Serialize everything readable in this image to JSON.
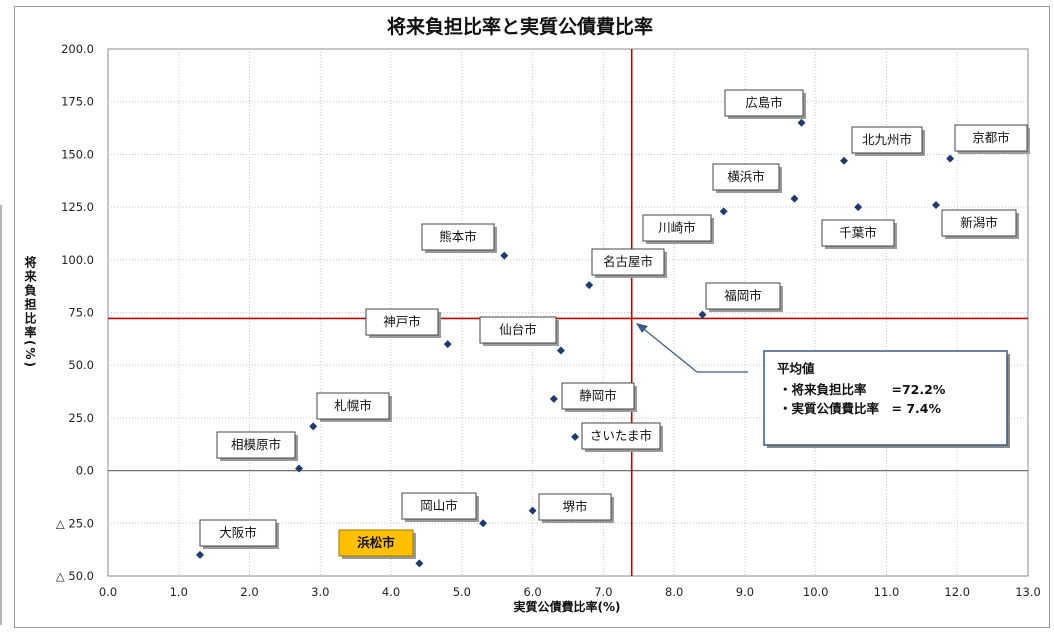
{
  "chart_data": {
    "type": "scatter",
    "title": "将来負担比率と実質公債費比率",
    "xlabel": "実質公債費比率(%)",
    "ylabel": "将来負担比率(%)",
    "xlim": [
      0,
      13
    ],
    "ylim": [
      -50,
      200
    ],
    "x_ticks": [
      "0.0",
      "1.0",
      "2.0",
      "3.0",
      "4.0",
      "5.0",
      "6.0",
      "7.0",
      "8.0",
      "9.0",
      "10.0",
      "11.0",
      "12.0",
      "13.0"
    ],
    "y_ticks": [
      {
        "value": 200,
        "label": "200.0"
      },
      {
        "value": 175,
        "label": "175.0"
      },
      {
        "value": 150,
        "label": "150.0"
      },
      {
        "value": 125,
        "label": "125.0"
      },
      {
        "value": 100,
        "label": "100.0"
      },
      {
        "value": 75,
        "label": "75.0"
      },
      {
        "value": 50,
        "label": "50.0"
      },
      {
        "value": 25,
        "label": "25.0"
      },
      {
        "value": 0,
        "label": "0.0"
      },
      {
        "value": -25,
        "label": "△ 25.0"
      },
      {
        "value": -50,
        "label": "△ 50.0"
      }
    ],
    "grid": true,
    "points": [
      {
        "name": "広島市",
        "x": 9.8,
        "y": 165
      },
      {
        "name": "北九州市",
        "x": 10.4,
        "y": 147
      },
      {
        "name": "京都市",
        "x": 11.9,
        "y": 148
      },
      {
        "name": "横浜市",
        "x": 9.7,
        "y": 129
      },
      {
        "name": "川崎市",
        "x": 8.7,
        "y": 123
      },
      {
        "name": "千葉市",
        "x": 10.6,
        "y": 125
      },
      {
        "name": "新潟市",
        "x": 11.7,
        "y": 126
      },
      {
        "name": "熊本市",
        "x": 5.6,
        "y": 102
      },
      {
        "name": "名古屋市",
        "x": 6.8,
        "y": 88
      },
      {
        "name": "福岡市",
        "x": 8.4,
        "y": 74
      },
      {
        "name": "神戸市",
        "x": 4.8,
        "y": 60
      },
      {
        "name": "仙台市",
        "x": 6.4,
        "y": 57
      },
      {
        "name": "札幌市",
        "x": 2.9,
        "y": 21
      },
      {
        "name": "静岡市",
        "x": 6.3,
        "y": 34
      },
      {
        "name": "さいたま市",
        "x": 6.6,
        "y": 16
      },
      {
        "name": "相模原市",
        "x": 2.7,
        "y": 1
      },
      {
        "name": "岡山市",
        "x": 5.3,
        "y": -25
      },
      {
        "name": "堺市",
        "x": 6.0,
        "y": -19
      },
      {
        "name": "大阪市",
        "x": 1.3,
        "y": -40
      },
      {
        "name": "浜松市",
        "x": 4.4,
        "y": -44,
        "highlight": true
      }
    ],
    "average": {
      "x": 7.4,
      "y": 72.2
    },
    "legend": {
      "title": "平均値",
      "lines": [
        "・将来負担比率　　=72.2%",
        "・実質公債費比率　=  7.4%"
      ]
    }
  },
  "colors": {
    "point": "#1f3b6b",
    "avg_line": "#c00000",
    "highlight": "#ffc000",
    "legend_border": "#3a5a8a",
    "grid": "#c8c8c8"
  }
}
